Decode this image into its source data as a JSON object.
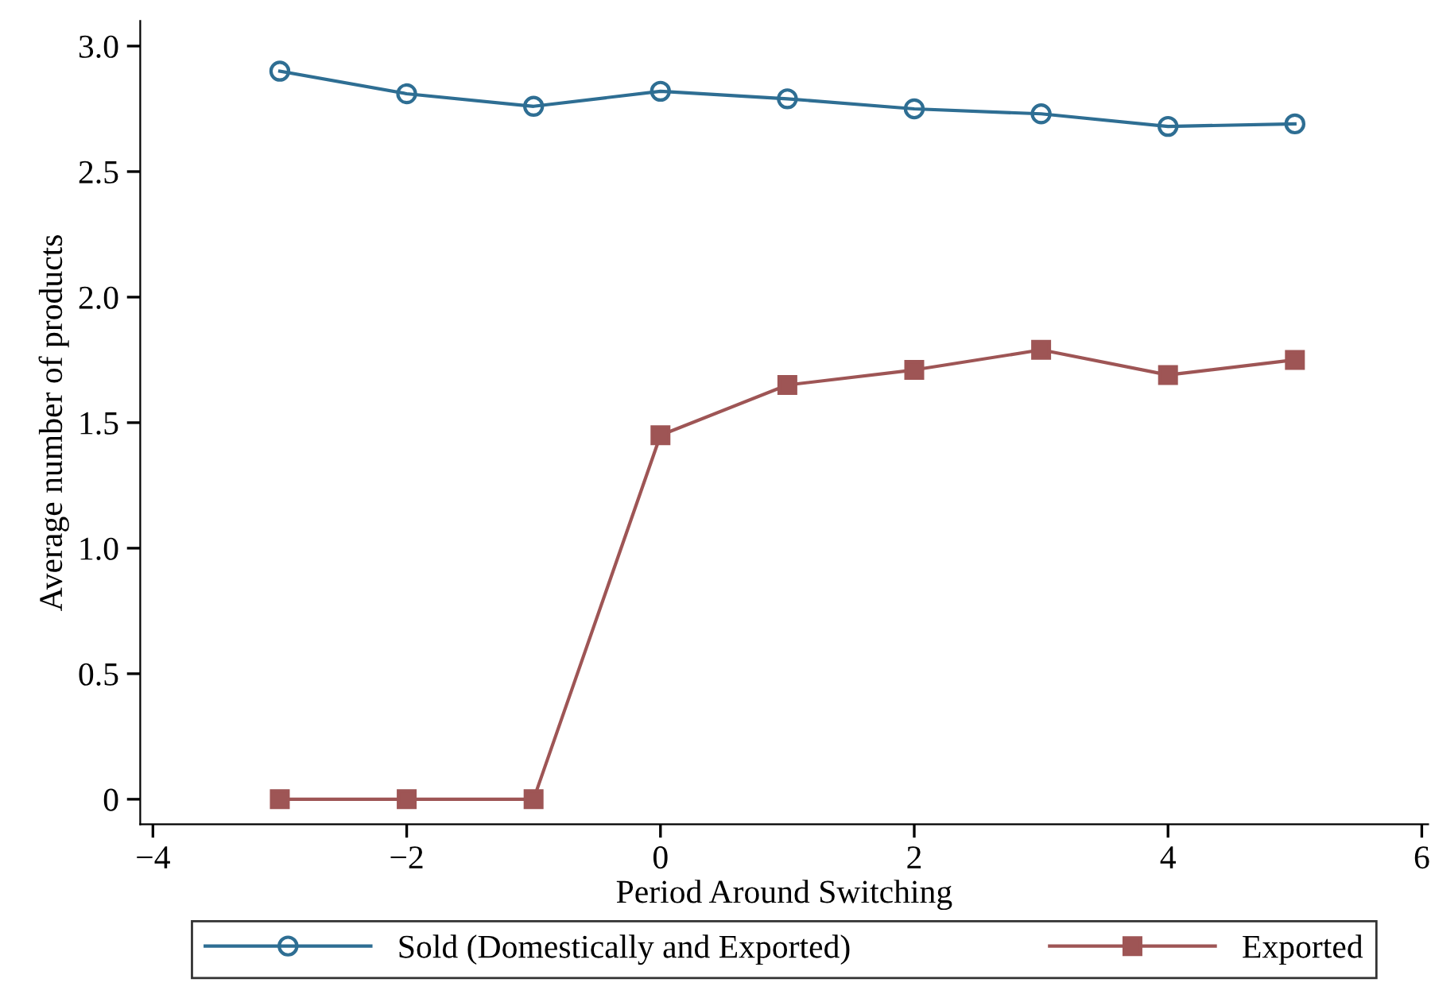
{
  "chart_data": {
    "type": "line",
    "xlabel": "Period Around Switching",
    "ylabel": "Average number of products",
    "x": [
      -3,
      -2,
      -1,
      0,
      1,
      2,
      3,
      4,
      5
    ],
    "series": [
      {
        "name": "Sold (Domestically and Exported)",
        "color": "#2e6e93",
        "marker": "circle",
        "values": [
          2.9,
          2.81,
          2.76,
          2.82,
          2.79,
          2.75,
          2.73,
          2.68,
          2.69
        ]
      },
      {
        "name": "Exported",
        "color": "#9e5555",
        "marker": "square",
        "values": [
          0,
          0,
          0,
          1.45,
          1.65,
          1.71,
          1.79,
          1.69,
          1.75
        ]
      }
    ],
    "xlim": [
      -4.1,
      6.05
    ],
    "ylim": [
      -0.1,
      3.1
    ],
    "xticks": [
      {
        "value": -4,
        "label": "−4"
      },
      {
        "value": -2,
        "label": "−2"
      },
      0,
      2,
      4,
      6
    ],
    "yticks": [
      0,
      0.5,
      {
        "value": 1,
        "label": "1.0"
      },
      1.5,
      {
        "value": 2,
        "label": "2.0"
      },
      2.5,
      {
        "value": 3,
        "label": "3.0"
      }
    ],
    "grid": false,
    "legend": "bottom",
    "line_style": "solid"
  }
}
